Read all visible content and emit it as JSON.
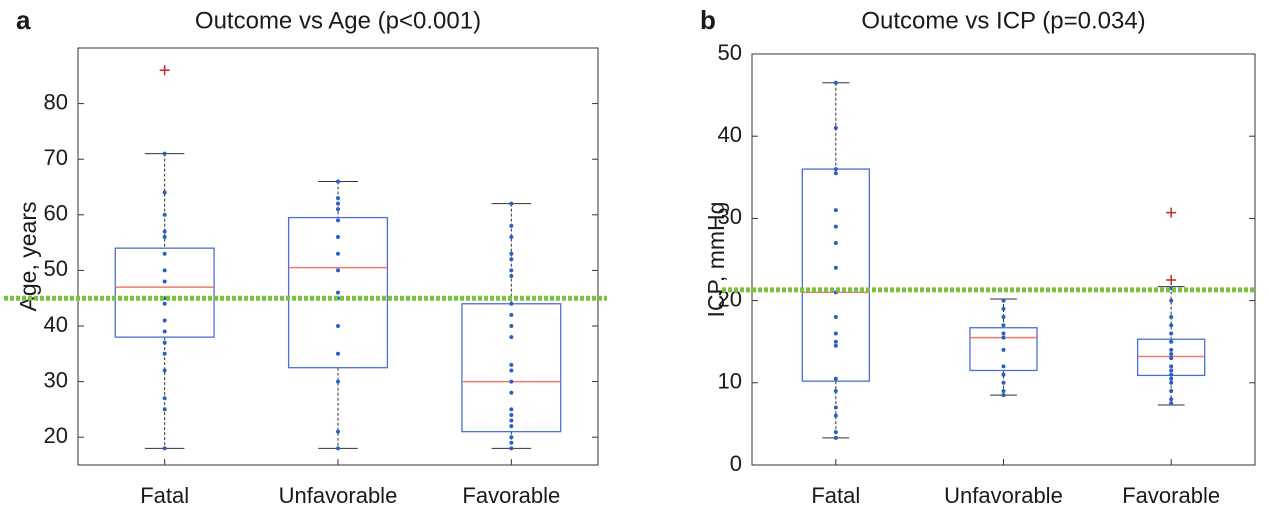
{
  "chart_data": [
    {
      "type": "box",
      "panel_label": "a",
      "title": "Outcome vs Age (p<0.001)",
      "ylabel": "Age, years",
      "categories": [
        "Fatal",
        "Unfavorable",
        "Favorable"
      ],
      "boxes": [
        {
          "min": 18,
          "q1": 38,
          "median": 47,
          "q3": 54,
          "max": 71,
          "outliers": [
            86
          ],
          "points": [
            71,
            64,
            60,
            57,
            56,
            53,
            50,
            48,
            45,
            44,
            41,
            39,
            37,
            35,
            32,
            27,
            25,
            18
          ]
        },
        {
          "min": 18,
          "q1": 32.5,
          "median": 50.5,
          "q3": 59.5,
          "max": 66,
          "outliers": [],
          "points": [
            66,
            63,
            62,
            61,
            59,
            56,
            53,
            50,
            46,
            45,
            40,
            35,
            30,
            21,
            18
          ]
        },
        {
          "min": 18,
          "q1": 21,
          "median": 30,
          "q3": 44,
          "max": 62,
          "outliers": [],
          "points": [
            62,
            58,
            56,
            53,
            52,
            50,
            49,
            44,
            42,
            40,
            38,
            33,
            32,
            30,
            28,
            25,
            24,
            23,
            22,
            20,
            19,
            18
          ]
        }
      ],
      "threshold": 45,
      "ylim": [
        15,
        90
      ],
      "yticks": [
        20,
        30,
        40,
        50,
        60,
        70,
        80
      ],
      "box_color": "#4a6fd6",
      "median_color": "#f07a6a",
      "point_color": "#2a5fc8",
      "outlier_color": "#c0282d",
      "whisker_color": "#333333",
      "threshold_color": "#7cc242"
    },
    {
      "type": "box",
      "panel_label": "b",
      "title": "Outcome vs ICP (p=0.034)",
      "ylabel": "ICP, mmHg",
      "categories": [
        "Fatal",
        "Unfavorable",
        "Favorable"
      ],
      "boxes": [
        {
          "min": 3.3,
          "q1": 10.2,
          "median": 21,
          "q3": 36,
          "max": 46.5,
          "outliers": [],
          "points": [
            46.5,
            41,
            36,
            35.5,
            31,
            29,
            27,
            24,
            21,
            18,
            16,
            15,
            14.5,
            10.5,
            9,
            7,
            6,
            4,
            3.3
          ]
        },
        {
          "min": 8.5,
          "q1": 11.5,
          "median": 15.5,
          "q3": 16.7,
          "max": 20.2,
          "outliers": [],
          "points": [
            20,
            19,
            18,
            17,
            16,
            15.5,
            14,
            12,
            11,
            10,
            9,
            8.5
          ]
        },
        {
          "min": 7.3,
          "q1": 10.9,
          "median": 13.2,
          "q3": 15.3,
          "max": 21.7,
          "outliers": [
            30.7,
            22.5
          ],
          "points": [
            21.5,
            20,
            18,
            17,
            16,
            15,
            14,
            13.5,
            13,
            12,
            11.5,
            11,
            10.5,
            10,
            9,
            8,
            7.5
          ]
        }
      ],
      "threshold": 21.3,
      "ylim": [
        0,
        50
      ],
      "yticks": [
        0,
        10,
        20,
        30,
        40,
        50
      ],
      "box_color": "#4a6fd6",
      "median_color": "#f07a6a",
      "point_color": "#2a5fc8",
      "outlier_color": "#c0282d",
      "whisker_color": "#333333",
      "threshold_color": "#7cc242"
    }
  ]
}
